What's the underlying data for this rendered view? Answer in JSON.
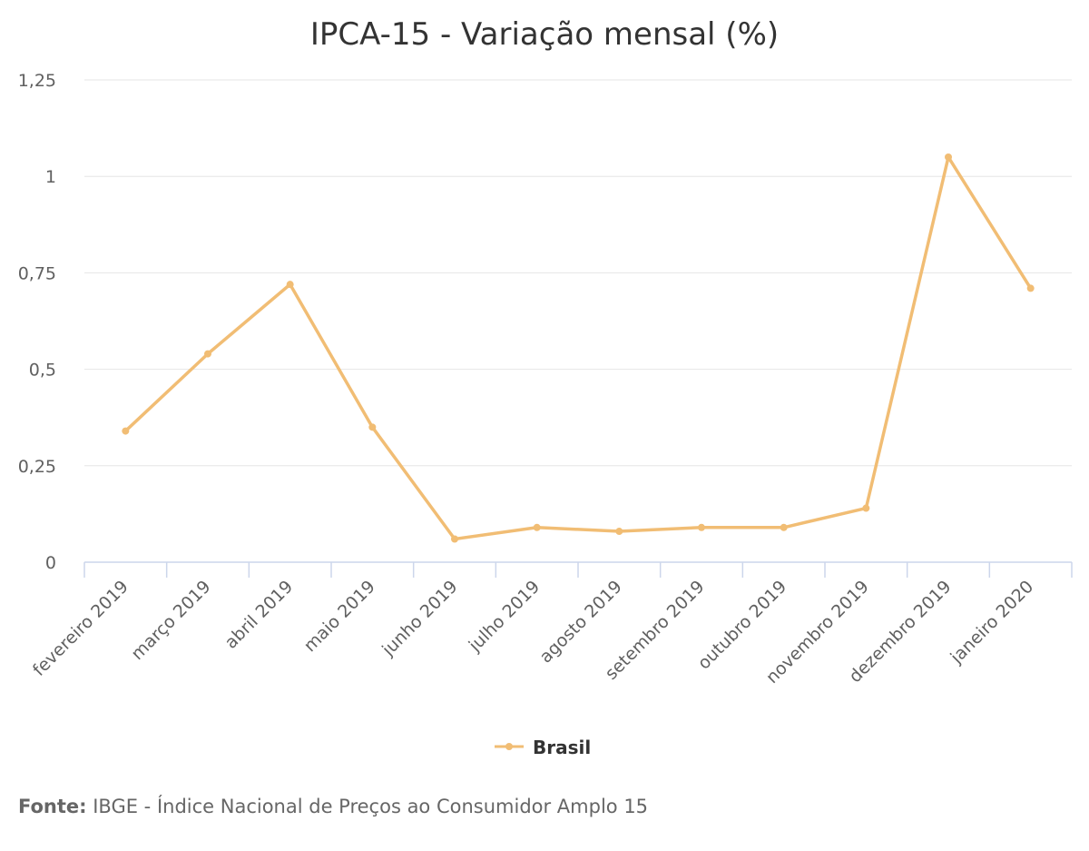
{
  "chart_data": {
    "type": "line",
    "title": "IPCA-15 - Variação mensal (%)",
    "categories": [
      "fevereiro 2019",
      "março 2019",
      "abril 2019",
      "maio 2019",
      "junho 2019",
      "julho 2019",
      "agosto 2019",
      "setembro 2019",
      "outubro 2019",
      "novembro 2019",
      "dezembro 2019",
      "janeiro 2020"
    ],
    "series": [
      {
        "name": "Brasil",
        "values": [
          0.34,
          0.54,
          0.72,
          0.35,
          0.06,
          0.09,
          0.08,
          0.09,
          0.09,
          0.14,
          1.05,
          0.71
        ]
      }
    ],
    "ylim": [
      0,
      1.25
    ],
    "yticks": [
      0,
      0.25,
      0.5,
      0.75,
      1,
      1.25
    ],
    "ytick_labels": [
      "0",
      "0,25",
      "0,5",
      "0,75",
      "1",
      "1,25"
    ],
    "grid": true,
    "legend": "bottom-center",
    "color": "#f1bd74"
  },
  "source": {
    "label": "Fonte:",
    "text": " IBGE - Índice Nacional de Preços ao Consumidor Amplo 15"
  }
}
